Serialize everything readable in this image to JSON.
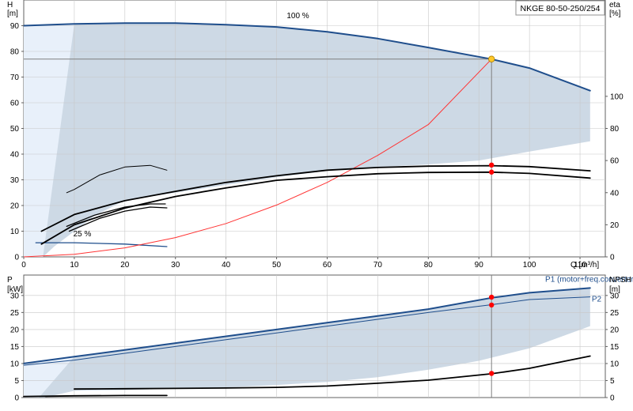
{
  "pump_label": "NKGE 80-50-250/254",
  "colors": {
    "head_curve": "#1f4e8c",
    "operating_envelope": "#cdd9e5",
    "light_region": "#e8f0fa",
    "system_curve": "#ff3333",
    "efficiency_curve": "#000000",
    "duty_point": "#ffc82a",
    "marker": "#ff0000",
    "guide_line": "#7f7f7f"
  },
  "chart_data": [
    {
      "id": "head",
      "type": "line",
      "xlabel": "Q [m³/h]",
      "ylabel": "H [m]",
      "y2label": "eta [%]",
      "xlim": [
        0,
        115
      ],
      "ylim": [
        0,
        100
      ],
      "y2lim": [
        0,
        160
      ],
      "xticks": [
        0,
        10,
        20,
        30,
        40,
        50,
        60,
        70,
        80,
        90,
        100,
        110
      ],
      "yticks": [
        0,
        10,
        20,
        30,
        40,
        50,
        60,
        70,
        80,
        90
      ],
      "y2ticks": [
        0,
        20,
        40,
        60,
        80,
        100
      ],
      "grid": true,
      "annotations": [
        {
          "text": "100 %",
          "x": 52,
          "y": 93
        },
        {
          "text": "25 %",
          "x": 9.8,
          "y": 8
        }
      ],
      "duty_point": {
        "x": 92.5,
        "y": 77
      },
      "series": [
        {
          "kind": "head-max",
          "axis": "left",
          "width": 2,
          "points": [
            [
              0,
              90
            ],
            [
              10,
              90.7
            ],
            [
              20,
              91
            ],
            [
              30,
              91
            ],
            [
              40,
              90.4
            ],
            [
              50,
              89.5
            ],
            [
              60,
              87.6
            ],
            [
              70,
              85
            ],
            [
              80,
              81.5
            ],
            [
              92.5,
              77
            ],
            [
              100,
              73.5
            ],
            [
              112,
              64.7
            ]
          ]
        },
        {
          "kind": "head-min",
          "axis": "left",
          "width": 1.3,
          "points": [
            [
              2.4,
              5.5
            ],
            [
              10,
              5.5
            ],
            [
              20,
              5
            ],
            [
              28.3,
              4
            ]
          ]
        },
        {
          "kind": "system",
          "axis": "left",
          "width": 1,
          "points": [
            [
              0,
              0
            ],
            [
              10,
              1
            ],
            [
              20,
              3.5
            ],
            [
              30,
              7.5
            ],
            [
              40,
              13
            ],
            [
              50,
              20.2
            ],
            [
              60,
              29
            ],
            [
              70,
              39.5
            ],
            [
              80,
              51.5
            ],
            [
              92.5,
              77
            ]
          ]
        },
        {
          "kind": "eta-max",
          "axis": "right",
          "width": 1.8,
          "points": [
            [
              3.5,
              16
            ],
            [
              10,
              26.4
            ],
            [
              20,
              35
            ],
            [
              30,
              40.8
            ],
            [
              40,
              46.4
            ],
            [
              50,
              50.5
            ],
            [
              60,
              54
            ],
            [
              70,
              55.7
            ],
            [
              80,
              56.5
            ],
            [
              92.5,
              56.8
            ],
            [
              100,
              56.2
            ],
            [
              112,
              53.6
            ]
          ]
        },
        {
          "kind": "eta-mid",
          "axis": "right",
          "width": 1.8,
          "points": [
            [
              3.5,
              8
            ],
            [
              10,
              20
            ],
            [
              20,
              30.4
            ],
            [
              30,
              37.6
            ],
            [
              40,
              43
            ],
            [
              50,
              47.7
            ],
            [
              60,
              49.9
            ],
            [
              70,
              51.8
            ],
            [
              80,
              52.6
            ],
            [
              92.5,
              52.8
            ],
            [
              100,
              52
            ],
            [
              112,
              49.1
            ]
          ]
        },
        {
          "kind": "eta-low",
          "axis": "right",
          "width": 1,
          "points": [
            [
              8.5,
              40
            ],
            [
              10,
              42
            ],
            [
              15,
              51
            ],
            [
              20,
              56
            ],
            [
              25,
              57
            ],
            [
              28.3,
              54
            ]
          ]
        },
        {
          "kind": "eta-low2",
          "axis": "right",
          "width": 1.3,
          "points": [
            [
              9,
              16
            ],
            [
              15,
              24
            ],
            [
              20,
              28.5
            ],
            [
              25,
              31
            ],
            [
              28.3,
              30.5
            ]
          ]
        },
        {
          "kind": "eta-low3",
          "axis": "right",
          "width": 1.3,
          "points": [
            [
              8.5,
              19
            ],
            [
              14,
              26
            ],
            [
              20,
              31
            ],
            [
              25,
              33
            ],
            [
              28,
              33
            ]
          ]
        }
      ],
      "markers": [
        {
          "x": 92.5,
          "y": 57.2,
          "axis": "right"
        },
        {
          "x": 92.5,
          "y": 52.8,
          "axis": "right"
        }
      ],
      "envelope": [
        [
          10,
          90.7
        ],
        [
          20,
          91
        ],
        [
          30,
          91
        ],
        [
          40,
          90.4
        ],
        [
          50,
          89.5
        ],
        [
          60,
          87.6
        ],
        [
          70,
          85
        ],
        [
          80,
          81.5
        ],
        [
          92.5,
          77
        ],
        [
          100,
          73.5
        ],
        [
          112,
          64.7
        ],
        [
          112,
          45
        ],
        [
          100,
          41
        ],
        [
          90,
          37.5
        ],
        [
          80,
          36
        ],
        [
          70,
          35
        ],
        [
          60,
          33.5
        ],
        [
          50,
          31
        ],
        [
          40,
          28
        ],
        [
          30,
          25
        ],
        [
          20,
          22
        ],
        [
          14,
          16
        ],
        [
          10,
          10
        ],
        [
          6,
          4
        ],
        [
          3.8,
          0
        ],
        [
          3.8,
          0
        ]
      ],
      "light_envelope": [
        [
          0,
          90
        ],
        [
          10,
          90.7
        ],
        [
          14,
          16
        ],
        [
          10,
          10
        ],
        [
          6,
          4
        ],
        [
          3.8,
          0
        ],
        [
          0,
          0
        ]
      ]
    },
    {
      "id": "power",
      "type": "line",
      "ylabel": "P [kW]",
      "y2label": "NPSH [m]",
      "xlim": [
        0,
        115
      ],
      "ylim": [
        0,
        36
      ],
      "y2lim": [
        0,
        36
      ],
      "yticks": [
        0,
        5,
        10,
        15,
        20,
        25,
        30
      ],
      "y2ticks": [
        0,
        5,
        10,
        15,
        20,
        25,
        30
      ],
      "grid": true,
      "series": [
        {
          "name": "P1 (motor+freq.converter)",
          "kind": "p1",
          "axis": "left",
          "width": 2,
          "points": [
            [
              0,
              10
            ],
            [
              10,
              12
            ],
            [
              20,
              14
            ],
            [
              30,
              16
            ],
            [
              40,
              18
            ],
            [
              50,
              20
            ],
            [
              60,
              22
            ],
            [
              70,
              24
            ],
            [
              80,
              26
            ],
            [
              92.5,
              29.3
            ],
            [
              100,
              30.8
            ],
            [
              112,
              32.2
            ]
          ]
        },
        {
          "name": "P2",
          "kind": "p2",
          "axis": "left",
          "width": 1,
          "points": [
            [
              0,
              9.5
            ],
            [
              10,
              11
            ],
            [
              20,
              13
            ],
            [
              30,
              15
            ],
            [
              40,
              17
            ],
            [
              50,
              19
            ],
            [
              60,
              21
            ],
            [
              70,
              23
            ],
            [
              80,
              25
            ],
            [
              92.5,
              27.3
            ],
            [
              100,
              28.8
            ],
            [
              112,
              29.6
            ]
          ]
        },
        {
          "kind": "npsh",
          "axis": "right",
          "width": 1.8,
          "points": [
            [
              10,
              2.5
            ],
            [
              20,
              2.6
            ],
            [
              30,
              2.7
            ],
            [
              40,
              2.8
            ],
            [
              50,
              3
            ],
            [
              60,
              3.4
            ],
            [
              70,
              4.2
            ],
            [
              80,
              5.1
            ],
            [
              92.5,
              7
            ],
            [
              100,
              8.6
            ],
            [
              112,
              12.2
            ]
          ]
        },
        {
          "kind": "p-min",
          "axis": "left",
          "width": 1.8,
          "points": [
            [
              0,
              0.3
            ],
            [
              10,
              0.5
            ],
            [
              20,
              0.6
            ],
            [
              28.3,
              0.6
            ]
          ]
        }
      ],
      "markers": [
        {
          "x": 92.5,
          "y": 29.5,
          "axis": "left"
        },
        {
          "x": 92.5,
          "y": 27.2,
          "axis": "left"
        },
        {
          "x": 92.5,
          "y": 7.1,
          "axis": "right"
        }
      ],
      "envelope": [
        [
          10,
          12
        ],
        [
          20,
          14
        ],
        [
          30,
          16
        ],
        [
          40,
          18
        ],
        [
          50,
          20
        ],
        [
          60,
          22
        ],
        [
          70,
          24
        ],
        [
          80,
          26
        ],
        [
          92.5,
          29.3
        ],
        [
          100,
          30.8
        ],
        [
          112,
          32.2
        ],
        [
          112,
          21
        ],
        [
          100,
          14.5
        ],
        [
          90,
          10.8
        ],
        [
          80,
          8.2
        ],
        [
          70,
          6
        ],
        [
          60,
          4.6
        ],
        [
          50,
          3.7
        ],
        [
          40,
          3
        ],
        [
          30,
          2.6
        ],
        [
          20,
          2.2
        ],
        [
          10,
          2
        ],
        [
          4,
          0
        ],
        [
          3,
          0
        ]
      ],
      "light_envelope": [
        [
          0,
          10
        ],
        [
          10,
          12
        ],
        [
          10,
          2
        ],
        [
          4,
          0
        ],
        [
          0,
          0
        ]
      ]
    }
  ]
}
